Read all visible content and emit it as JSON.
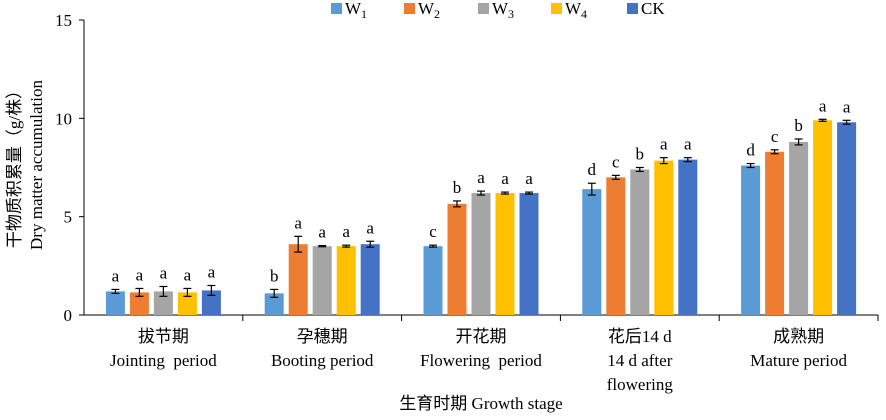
{
  "chart_data": {
    "type": "bar",
    "ylabel_cn": "干物质积累量（g/株）",
    "ylabel_en": "Dry matter accumulation",
    "xlabel": "生育时期 Growth stage",
    "ylim": [
      0,
      15
    ],
    "yticks": [
      "0",
      "5",
      "10",
      "15"
    ],
    "grid": false,
    "legend_position": "top",
    "categories": [
      {
        "cn": "拔节期",
        "en": [
          "Jointing  period"
        ]
      },
      {
        "cn": "孕穗期",
        "en": [
          "Booting period"
        ]
      },
      {
        "cn": "开花期",
        "en": [
          "Flowering  period"
        ]
      },
      {
        "cn": "花后14 d",
        "en": [
          "14 d after",
          "flowering"
        ]
      },
      {
        "cn": "成熟期",
        "en": [
          "Mature period"
        ]
      }
    ],
    "series": [
      {
        "name": "W",
        "sub": "1",
        "color": "#5B9BD5",
        "values": [
          1.2,
          1.1,
          3.5,
          6.4,
          7.6
        ],
        "errors": [
          0.1,
          0.2,
          0.05,
          0.3,
          0.1
        ],
        "letters": [
          "a",
          "b",
          "c",
          "d",
          "d"
        ]
      },
      {
        "name": "W",
        "sub": "2",
        "color": "#ED7D31",
        "values": [
          1.15,
          3.6,
          5.65,
          7.0,
          8.3
        ],
        "errors": [
          0.2,
          0.4,
          0.15,
          0.1,
          0.1
        ],
        "letters": [
          "a",
          "a",
          "b",
          "c",
          "c"
        ]
      },
      {
        "name": "W",
        "sub": "3",
        "color": "#A5A5A5",
        "values": [
          1.2,
          3.5,
          6.2,
          7.4,
          8.8
        ],
        "errors": [
          0.25,
          0.03,
          0.1,
          0.1,
          0.15
        ],
        "letters": [
          "a",
          "a",
          "a",
          "b",
          "b"
        ]
      },
      {
        "name": "W",
        "sub": "4",
        "color": "#FFC000",
        "values": [
          1.15,
          3.5,
          6.2,
          7.85,
          9.9
        ],
        "errors": [
          0.2,
          0.05,
          0.05,
          0.15,
          0.05
        ],
        "letters": [
          "a",
          "a",
          "a",
          "a",
          "a"
        ]
      },
      {
        "name": "CK",
        "sub": "",
        "color": "#4472C4",
        "values": [
          1.25,
          3.6,
          6.2,
          7.9,
          9.8
        ],
        "errors": [
          0.25,
          0.15,
          0.05,
          0.1,
          0.1
        ],
        "letters": [
          "a",
          "a",
          "a",
          "a",
          "a"
        ]
      }
    ]
  }
}
